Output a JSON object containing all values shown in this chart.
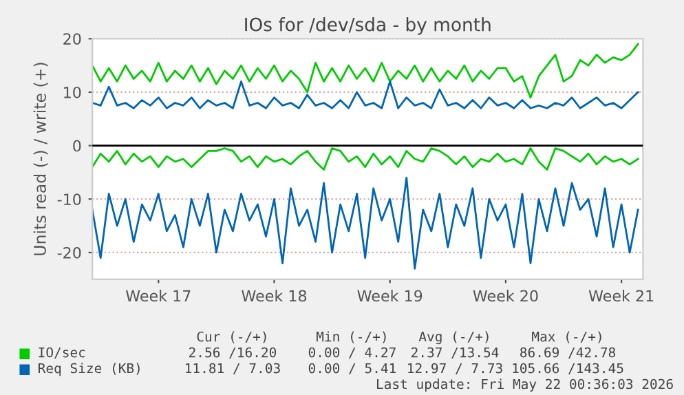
{
  "chart_data": {
    "type": "line",
    "title": "IOs for /dev/sda - by month",
    "ylabel": "Units read (-) / write (+)",
    "categories": [
      null,
      null,
      null,
      null,
      null,
      null,
      null,
      null,
      "Week 17",
      null,
      null,
      null,
      null,
      null,
      null,
      null,
      null,
      null,
      null,
      null,
      null,
      null,
      "Week 18",
      null,
      null,
      null,
      null,
      null,
      null,
      null,
      null,
      null,
      null,
      null,
      null,
      null,
      "Week 19",
      null,
      null,
      null,
      null,
      null,
      null,
      null,
      null,
      null,
      null,
      null,
      null,
      null,
      "Week 20",
      null,
      null,
      null,
      null,
      null,
      null,
      null,
      null,
      null,
      null,
      null,
      null,
      null,
      "Week 21",
      null,
      null
    ],
    "series": [
      {
        "name": "IO/sec",
        "color": "#00cc00",
        "values": [
          15,
          12,
          14.5,
          12,
          15,
          12.5,
          14,
          12,
          15.5,
          12,
          14,
          12.5,
          15,
          12,
          14.5,
          11.5,
          14,
          12.5,
          15,
          12,
          14.5,
          12.5,
          15,
          12,
          14,
          12.5,
          10,
          15.5,
          12,
          14.5,
          12,
          15,
          12.5,
          14.5,
          12,
          15.5,
          12,
          14,
          12.5,
          15,
          12,
          14.5,
          12,
          14,
          12.5,
          15,
          12,
          14,
          12.5,
          14.5,
          14.5,
          12,
          13,
          9,
          13,
          15,
          17,
          12,
          13,
          16,
          15,
          17,
          15.5,
          16.5,
          16,
          17,
          19
        ]
      },
      {
        "color": "#00cc00",
        "values": [
          -4,
          -1.5,
          -3,
          -1,
          -3.5,
          -1.5,
          -3,
          -2,
          -4,
          -2,
          -3,
          -2.5,
          -4,
          -2.5,
          -1,
          -1,
          -0.5,
          -1,
          -3,
          -2,
          -4,
          -2,
          -3,
          -2.5,
          -3.5,
          -2,
          -1,
          -3,
          -4.5,
          -0.5,
          -1,
          -3,
          -2,
          -4,
          -1.5,
          -3.5,
          -2,
          -4,
          -1,
          -2.5,
          -3,
          -0.5,
          -1,
          -2,
          -3.5,
          -2,
          -4,
          -2.5,
          -3,
          -1.5,
          -3,
          -2.5,
          -3.5,
          -0.5,
          -3,
          -4.5,
          -0.5,
          -1,
          -2,
          -3,
          -1.5,
          -3.5,
          -2,
          -3,
          -2.5,
          -3.5,
          -2.5
        ]
      },
      {
        "name": "Req Size (KB)",
        "color": "#0066b3",
        "values": [
          8,
          7.5,
          11,
          7.5,
          8,
          7,
          8.5,
          7.5,
          9,
          7,
          8,
          7.5,
          9,
          7,
          8.5,
          7.5,
          8,
          7,
          12,
          7.5,
          8,
          7,
          9,
          7.5,
          8,
          7,
          9.5,
          7.5,
          8,
          7,
          8.5,
          7,
          10,
          7.5,
          8,
          7,
          12,
          7,
          9,
          7.5,
          8,
          7,
          10.5,
          7.5,
          8,
          7,
          8.5,
          7,
          9,
          7.5,
          8,
          7,
          8.5,
          7,
          7.5,
          7,
          8,
          7.5,
          9,
          7,
          8,
          9,
          7.5,
          8,
          7,
          8.5,
          10
        ]
      },
      {
        "color": "#0066b3",
        "values": [
          -12,
          -21,
          -9,
          -15,
          -10,
          -18,
          -11,
          -14,
          -9,
          -16,
          -13,
          -19,
          -10,
          -15,
          -9,
          -20,
          -12,
          -16,
          -9,
          -14,
          -11,
          -17,
          -10,
          -22,
          -8,
          -15,
          -12,
          -18,
          -7,
          -20,
          -11,
          -16,
          -9,
          -21,
          -8,
          -14,
          -10,
          -18,
          -6,
          -23,
          -12,
          -16,
          -9,
          -19,
          -11,
          -15,
          -8,
          -21,
          -10,
          -14,
          -11,
          -19,
          -9,
          -22,
          -10,
          -16,
          -8,
          -15,
          -7,
          -12,
          -10,
          -17,
          -8,
          -19,
          -11,
          -20,
          -12
        ]
      }
    ],
    "ylim": [
      -25,
      20
    ],
    "yticks": [
      -20,
      -10,
      0,
      10,
      20
    ],
    "ref_lines": [
      {
        "axis": "y",
        "value": 0,
        "color": "#000000",
        "line_style": "solid"
      }
    ],
    "grid": "y",
    "legend": "bottom",
    "annotations": [
      "Cur (-/+)",
      "Min (-/+)",
      "Avg (-/+)",
      "Max (-/+)",
      "2.56 /16.20",
      "0.00 / 4.27",
      "2.37 /13.54",
      "86.69 /42.78",
      "11.81 / 7.03",
      "0.00 / 5.41",
      "12.97 / 7.73",
      "105.66 /143.45",
      "Last update: Fri May 22 00:36:03 2026"
    ]
  }
}
